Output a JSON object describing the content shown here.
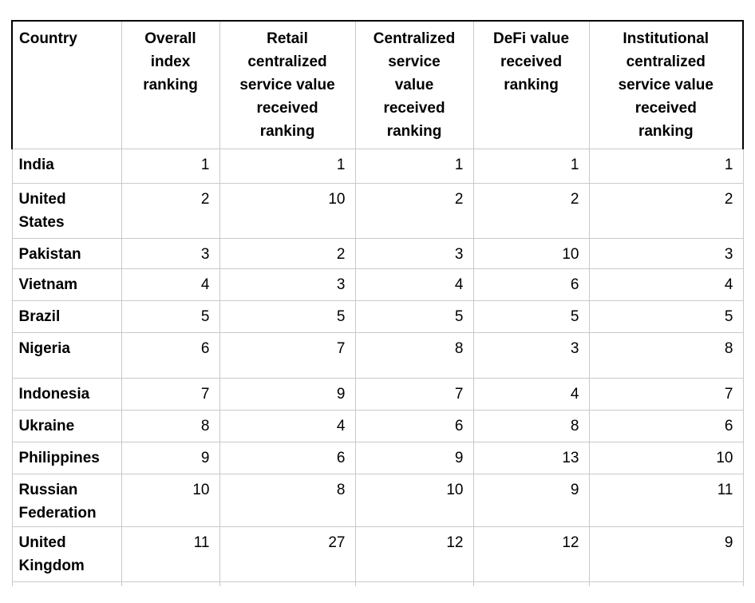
{
  "chart_data": {
    "type": "table",
    "title": "",
    "headers": [
      "Country",
      "Overall index ranking",
      "Retail centralized service value received ranking",
      "Centralized service value received ranking",
      "DeFi value received ranking",
      "Institutional centralized service value received ranking"
    ],
    "rows": [
      {
        "country": "India",
        "values": [
          "1",
          "1",
          "1",
          "1",
          "1"
        ]
      },
      {
        "country": "United States",
        "values": [
          "2",
          "10",
          "2",
          "2",
          "2"
        ]
      },
      {
        "country": "Pakistan",
        "values": [
          "3",
          "2",
          "3",
          "10",
          "3"
        ]
      },
      {
        "country": "Vietnam",
        "values": [
          "4",
          "3",
          "4",
          "6",
          "4"
        ]
      },
      {
        "country": "Brazil",
        "values": [
          "5",
          "5",
          "5",
          "5",
          "5"
        ]
      },
      {
        "country": "Nigeria",
        "values": [
          "6",
          "7",
          "8",
          "3",
          "8"
        ]
      },
      {
        "country": "Indonesia",
        "values": [
          "7",
          "9",
          "7",
          "4",
          "7"
        ]
      },
      {
        "country": "Ukraine",
        "values": [
          "8",
          "4",
          "6",
          "8",
          "6"
        ]
      },
      {
        "country": "Philippines",
        "values": [
          "9",
          "6",
          "9",
          "13",
          "10"
        ]
      },
      {
        "country": "Russian Federation",
        "values": [
          "10",
          "8",
          "10",
          "9",
          "11"
        ]
      },
      {
        "country": "United Kingdom",
        "values": [
          "11",
          "27",
          "12",
          "12",
          "9"
        ]
      }
    ],
    "colors": {
      "text": "#000000",
      "grid_border": "#c9c9c9",
      "header_outline": "#000000",
      "background": "#ffffff"
    },
    "layout": {
      "grid": "on",
      "header_alignment": "center (Country column left)",
      "value_alignment": "right",
      "country_alignment": "left"
    }
  }
}
